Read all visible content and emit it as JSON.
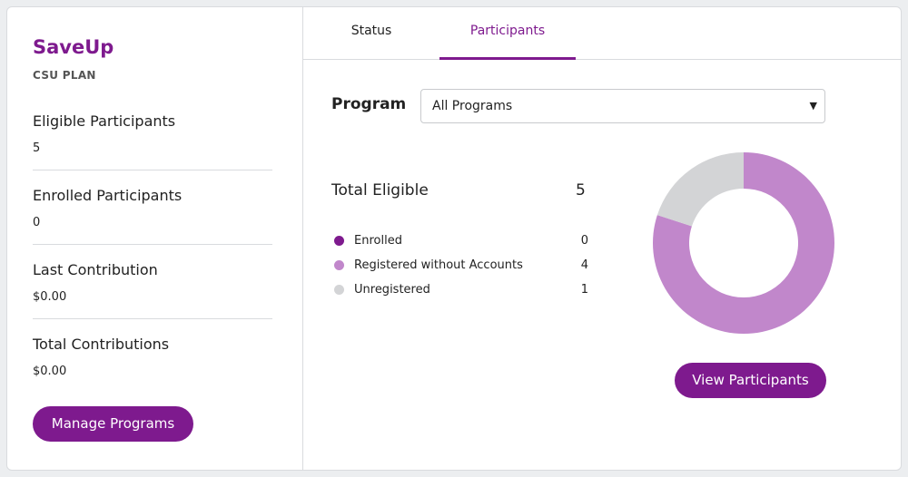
{
  "sidebar": {
    "brand": "SaveUp",
    "plan": "CSU PLAN",
    "stats": [
      {
        "label": "Eligible Participants",
        "value": "5"
      },
      {
        "label": "Enrolled Participants",
        "value": "0"
      },
      {
        "label": "Last Contribution",
        "value": "$0.00"
      },
      {
        "label": "Total Contributions",
        "value": "$0.00"
      }
    ],
    "manage_button": "Manage Programs"
  },
  "tabs": [
    {
      "label": "Status",
      "active": false
    },
    {
      "label": "Participants",
      "active": true
    }
  ],
  "program": {
    "label": "Program",
    "selected": "All Programs"
  },
  "summary": {
    "total_label": "Total Eligible",
    "total_value": "5"
  },
  "colors": {
    "accent": "#7e1a8e",
    "enrolled": "#7e1a8e",
    "registered": "#c187cb",
    "unregistered": "#d3d4d6"
  },
  "chart_data": {
    "type": "pie",
    "categories": [
      "Enrolled",
      "Registered without Accounts",
      "Unregistered"
    ],
    "values": [
      0,
      4,
      1
    ],
    "colors": [
      "#7e1a8e",
      "#c187cb",
      "#d3d4d6"
    ]
  },
  "view_button": "View Participants"
}
